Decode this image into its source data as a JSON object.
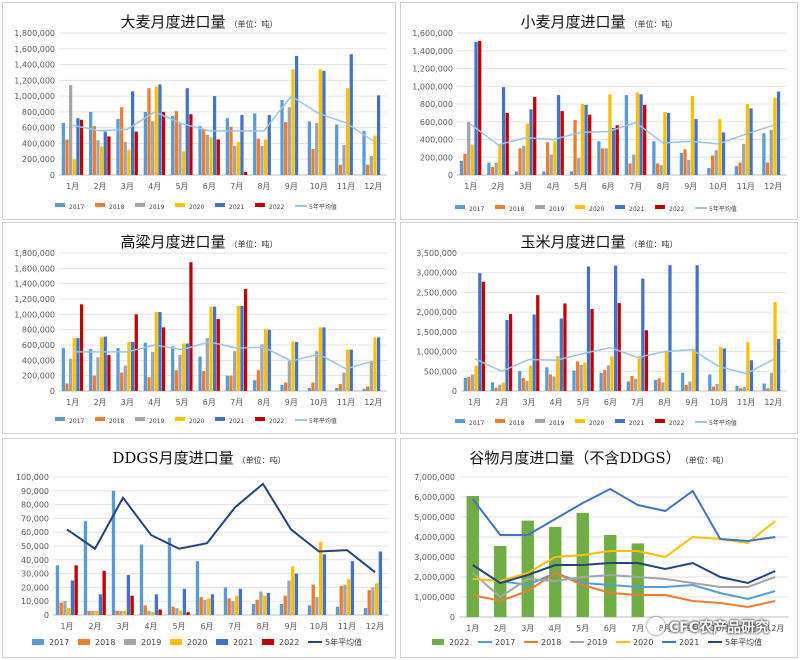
{
  "colors": {
    "2017": "#5b9bd5",
    "2018": "#ed7d31",
    "2019": "#a5a5a5",
    "2020": "#ffc000",
    "2021": "#4472c4",
    "2022": "#c00000",
    "avg": "#9dc3e6",
    "avg_dark": "#264478",
    "green": "#70ad47"
  },
  "months": [
    "1月",
    "2月",
    "3月",
    "4月",
    "5月",
    "6月",
    "7月",
    "8月",
    "9月",
    "10月",
    "11月",
    "12月"
  ],
  "watermark": "CFC农产品研究",
  "chart_data": [
    {
      "type": "bar",
      "id": "barley",
      "title": "大麦月度进口量",
      "unit": "（单位：吨）",
      "ylim": [
        0,
        1800000
      ],
      "yticks": [
        0,
        200000,
        400000,
        600000,
        800000,
        1000000,
        1200000,
        1400000,
        1600000,
        1800000
      ],
      "categories": [
        "1月",
        "2月",
        "3月",
        "4月",
        "5月",
        "6月",
        "7月",
        "8月",
        "9月",
        "10月",
        "11月",
        "12月"
      ],
      "series": [
        {
          "name": "2017",
          "values": [
            660000,
            800000,
            710000,
            800000,
            750000,
            620000,
            720000,
            780000,
            950000,
            680000,
            640000,
            560000
          ]
        },
        {
          "name": "2018",
          "values": [
            450000,
            620000,
            860000,
            1100000,
            810000,
            580000,
            610000,
            460000,
            670000,
            330000,
            130000,
            130000
          ]
        },
        {
          "name": "2019",
          "values": [
            1140000,
            440000,
            420000,
            680000,
            650000,
            510000,
            370000,
            370000,
            860000,
            660000,
            380000,
            240000
          ]
        },
        {
          "name": "2020",
          "values": [
            200000,
            360000,
            320000,
            1120000,
            300000,
            480000,
            420000,
            450000,
            1340000,
            1340000,
            1100000,
            500000
          ]
        },
        {
          "name": "2021",
          "values": [
            720000,
            550000,
            1060000,
            1150000,
            1100000,
            1000000,
            760000,
            760000,
            1510000,
            1320000,
            1530000,
            1010000
          ]
        },
        {
          "name": "2022",
          "values": [
            700000,
            490000,
            550000,
            800000,
            770000,
            450000,
            40000,
            null,
            null,
            null,
            null,
            null
          ]
        }
      ],
      "line": {
        "name": "5年平均值",
        "values": [
          630000,
          560000,
          580000,
          800000,
          650000,
          560000,
          560000,
          560000,
          1000000,
          780000,
          660000,
          430000
        ]
      },
      "legend": [
        "2017",
        "2018",
        "2019",
        "2020",
        "2021",
        "2022",
        "5年平均值"
      ]
    },
    {
      "type": "bar",
      "id": "wheat",
      "title": "小麦月度进口量",
      "unit": "（单位：吨）",
      "ylim": [
        0,
        1600000
      ],
      "yticks": [
        0,
        200000,
        400000,
        600000,
        800000,
        1000000,
        1200000,
        1400000,
        1600000
      ],
      "categories": [
        "1月",
        "2月",
        "3月",
        "4月",
        "5月",
        "6月",
        "7月",
        "8月",
        "9月",
        "10月",
        "11月",
        "12月"
      ],
      "series": [
        {
          "name": "2017",
          "values": [
            160000,
            140000,
            40000,
            40000,
            40000,
            380000,
            900000,
            380000,
            250000,
            80000,
            100000,
            470000
          ]
        },
        {
          "name": "2018",
          "values": [
            240000,
            90000,
            300000,
            370000,
            620000,
            300000,
            130000,
            130000,
            290000,
            220000,
            140000,
            140000
          ]
        },
        {
          "name": "2019",
          "values": [
            600000,
            140000,
            330000,
            230000,
            190000,
            300000,
            230000,
            110000,
            170000,
            280000,
            350000,
            510000
          ]
        },
        {
          "name": "2020",
          "values": [
            340000,
            340000,
            580000,
            380000,
            800000,
            910000,
            930000,
            710000,
            890000,
            630000,
            800000,
            870000
          ]
        },
        {
          "name": "2021",
          "values": [
            1500000,
            990000,
            740000,
            900000,
            790000,
            530000,
            910000,
            700000,
            630000,
            480000,
            750000,
            940000
          ]
        },
        {
          "name": "2022",
          "values": [
            1510000,
            700000,
            880000,
            720000,
            680000,
            560000,
            790000,
            null,
            null,
            null,
            null,
            null
          ]
        }
      ],
      "line": {
        "name": "5年平均值",
        "values": [
          570000,
          340000,
          420000,
          400000,
          480000,
          490000,
          590000,
          360000,
          380000,
          350000,
          460000,
          560000
        ]
      },
      "legend": [
        "2017",
        "2018",
        "2019",
        "2020",
        "2021",
        "2022",
        "5年平均值"
      ]
    },
    {
      "type": "bar",
      "id": "sorghum",
      "title": "高粱月度进口量",
      "unit": "（单位：吨）",
      "ylim": [
        0,
        1800000
      ],
      "yticks": [
        0,
        200000,
        400000,
        600000,
        800000,
        1000000,
        1200000,
        1400000,
        1600000,
        1800000
      ],
      "categories": [
        "1月",
        "2月",
        "3月",
        "4月",
        "5月",
        "6月",
        "7月",
        "8月",
        "9月",
        "10月",
        "11月",
        "12月"
      ],
      "series": [
        {
          "name": "2017",
          "values": [
            560000,
            550000,
            560000,
            630000,
            580000,
            450000,
            200000,
            140000,
            80000,
            40000,
            40000,
            30000
          ]
        },
        {
          "name": "2018",
          "values": [
            100000,
            200000,
            240000,
            180000,
            270000,
            260000,
            200000,
            270000,
            110000,
            110000,
            90000,
            60000
          ]
        },
        {
          "name": "2019",
          "values": [
            420000,
            440000,
            330000,
            510000,
            470000,
            690000,
            520000,
            610000,
            390000,
            520000,
            240000,
            390000
          ]
        },
        {
          "name": "2020",
          "values": [
            690000,
            700000,
            640000,
            1030000,
            620000,
            1100000,
            1110000,
            810000,
            650000,
            830000,
            540000,
            700000
          ]
        },
        {
          "name": "2021",
          "values": [
            690000,
            710000,
            640000,
            1030000,
            620000,
            1100000,
            1110000,
            800000,
            640000,
            830000,
            540000,
            700000
          ]
        },
        {
          "name": "2022",
          "values": [
            1130000,
            470000,
            1000000,
            830000,
            1680000,
            940000,
            1330000,
            null,
            null,
            null,
            null,
            null
          ]
        }
      ],
      "line": {
        "name": "5年平均值",
        "values": [
          510000,
          510000,
          510000,
          600000,
          540000,
          640000,
          560000,
          570000,
          390000,
          480000,
          290000,
          390000
        ]
      },
      "legend": [
        "2017",
        "2018",
        "2019",
        "2020",
        "2021",
        "2022",
        "5年平均值"
      ]
    },
    {
      "type": "bar",
      "id": "corn",
      "title": "玉米月度进口量",
      "unit": "（单位：吨）",
      "ylim": [
        0,
        3500000
      ],
      "yticks": [
        0,
        500000,
        1000000,
        1500000,
        2000000,
        2500000,
        3000000,
        3500000
      ],
      "categories": [
        "1月",
        "2月",
        "3月",
        "4月",
        "5月",
        "6月",
        "7月",
        "8月",
        "9月",
        "10月",
        "11月",
        "12月"
      ],
      "series": [
        {
          "name": "2017",
          "values": [
            330000,
            220000,
            510000,
            600000,
            520000,
            460000,
            240000,
            280000,
            460000,
            420000,
            130000,
            190000
          ]
        },
        {
          "name": "2018",
          "values": [
            360000,
            80000,
            330000,
            420000,
            750000,
            530000,
            380000,
            320000,
            150000,
            110000,
            70000,
            70000
          ]
        },
        {
          "name": "2019",
          "values": [
            420000,
            160000,
            260000,
            370000,
            660000,
            650000,
            310000,
            220000,
            240000,
            180000,
            100000,
            460000
          ]
        },
        {
          "name": "2020",
          "values": [
            640000,
            210000,
            640000,
            890000,
            720000,
            880000,
            870000,
            1020000,
            1060000,
            1120000,
            1240000,
            2260000
          ]
        },
        {
          "name": "2021",
          "values": [
            2990000,
            1800000,
            1940000,
            1840000,
            3160000,
            3180000,
            2850000,
            3190000,
            3190000,
            1080000,
            780000,
            1320000
          ]
        },
        {
          "name": "2022",
          "values": [
            2770000,
            1950000,
            2430000,
            2220000,
            2080000,
            2230000,
            1540000,
            null,
            null,
            null,
            null,
            null
          ]
        }
      ],
      "line": {
        "name": "5年平均值",
        "values": [
          820000,
          500000,
          800000,
          780000,
          950000,
          1100000,
          850000,
          1000000,
          1050000,
          620000,
          440000,
          800000
        ]
      },
      "legend": [
        "2017",
        "2018",
        "2019",
        "2020",
        "2021",
        "2022",
        "5年平均值"
      ]
    },
    {
      "type": "bar",
      "id": "ddgs",
      "title": "DDGS月度进口量",
      "unit": "（单位：吨）",
      "ylim": [
        0,
        100000
      ],
      "yticks": [
        0,
        10000,
        20000,
        30000,
        40000,
        50000,
        60000,
        70000,
        80000,
        90000,
        100000
      ],
      "categories": [
        "1月",
        "2月",
        "3月",
        "4月",
        "5月",
        "6月",
        "7月",
        "8月",
        "9月",
        "10月",
        "11月",
        "12月"
      ],
      "series": [
        {
          "name": "2017",
          "values": [
            36000,
            68000,
            90000,
            51000,
            56000,
            39000,
            20000,
            8000,
            8000,
            7000,
            6000,
            5000
          ]
        },
        {
          "name": "2018",
          "values": [
            9000,
            3000,
            3000,
            7000,
            6000,
            13000,
            12000,
            11000,
            14000,
            22000,
            21000,
            18000
          ]
        },
        {
          "name": "2019",
          "values": [
            10000,
            3000,
            3000,
            3000,
            5000,
            11000,
            10000,
            17000,
            25000,
            13000,
            22000,
            20000
          ]
        },
        {
          "name": "2020",
          "values": [
            5000,
            3000,
            3000,
            2000,
            3000,
            12000,
            14000,
            14000,
            35000,
            53000,
            26000,
            23000
          ]
        },
        {
          "name": "2021",
          "values": [
            25000,
            15000,
            29000,
            15000,
            19000,
            15000,
            19000,
            16000,
            30000,
            44000,
            39000,
            46000
          ]
        },
        {
          "name": "2022",
          "values": [
            36000,
            32000,
            14000,
            4000,
            2000,
            null,
            null,
            null,
            null,
            null,
            null,
            null
          ]
        }
      ],
      "line": {
        "name": "5年平均值",
        "values": [
          62000,
          48000,
          85000,
          58000,
          48000,
          52000,
          78000,
          95000,
          62000,
          46000,
          47000,
          31000
        ]
      },
      "legend": [
        "2017",
        "2018",
        "2019",
        "2020",
        "2021",
        "2022",
        "5年平均值"
      ]
    },
    {
      "type": "bar",
      "id": "grain",
      "title": "谷物月度进口量（不含DDGS）",
      "unit": "（单位：吨）",
      "title_style": "big",
      "ylim": [
        0,
        7000000
      ],
      "yticks": [
        0,
        1000000,
        2000000,
        3000000,
        4000000,
        5000000,
        6000000,
        7000000
      ],
      "categories": [
        "1月",
        "2月",
        "3月",
        "4月",
        "5月",
        "6月",
        "7月",
        "8月",
        "9月",
        "10月",
        "11月",
        "12月"
      ],
      "bar": {
        "name": "2022",
        "values": [
          6050000,
          3550000,
          4820000,
          4500000,
          5200000,
          4100000,
          3680000,
          null,
          null,
          null,
          null,
          null
        ]
      },
      "lines": [
        {
          "name": "2017",
          "values": [
            1900000,
            1800000,
            1600000,
            2200000,
            1700000,
            1600000,
            1500000,
            1500000,
            1600000,
            1200000,
            900000,
            1300000
          ]
        },
        {
          "name": "2018",
          "values": [
            1100000,
            800000,
            1300000,
            2200000,
            1600000,
            1200000,
            1100000,
            1100000,
            800000,
            700000,
            500000,
            800000
          ]
        },
        {
          "name": "2019",
          "values": [
            2200000,
            1000000,
            1900000,
            1800000,
            2000000,
            2100000,
            2000000,
            1900000,
            1700000,
            1500000,
            1500000,
            2000000
          ]
        },
        {
          "name": "2020",
          "values": [
            1900000,
            1800000,
            2200000,
            3000000,
            3100000,
            3300000,
            3300000,
            3000000,
            4000000,
            3900000,
            3700000,
            4800000
          ]
        },
        {
          "name": "2021",
          "values": [
            5900000,
            4100000,
            4100000,
            4900000,
            5700000,
            6400000,
            5600000,
            5300000,
            6300000,
            3900000,
            3800000,
            4000000
          ]
        },
        {
          "name": "5年平均值",
          "values": [
            2600000,
            1700000,
            2100000,
            2600000,
            2600000,
            2700000,
            2700000,
            2400000,
            2700000,
            2000000,
            1700000,
            2300000
          ]
        }
      ],
      "legend": [
        "2022",
        "2017",
        "2018",
        "2019",
        "2020",
        "2021",
        "5年平均值"
      ]
    }
  ]
}
